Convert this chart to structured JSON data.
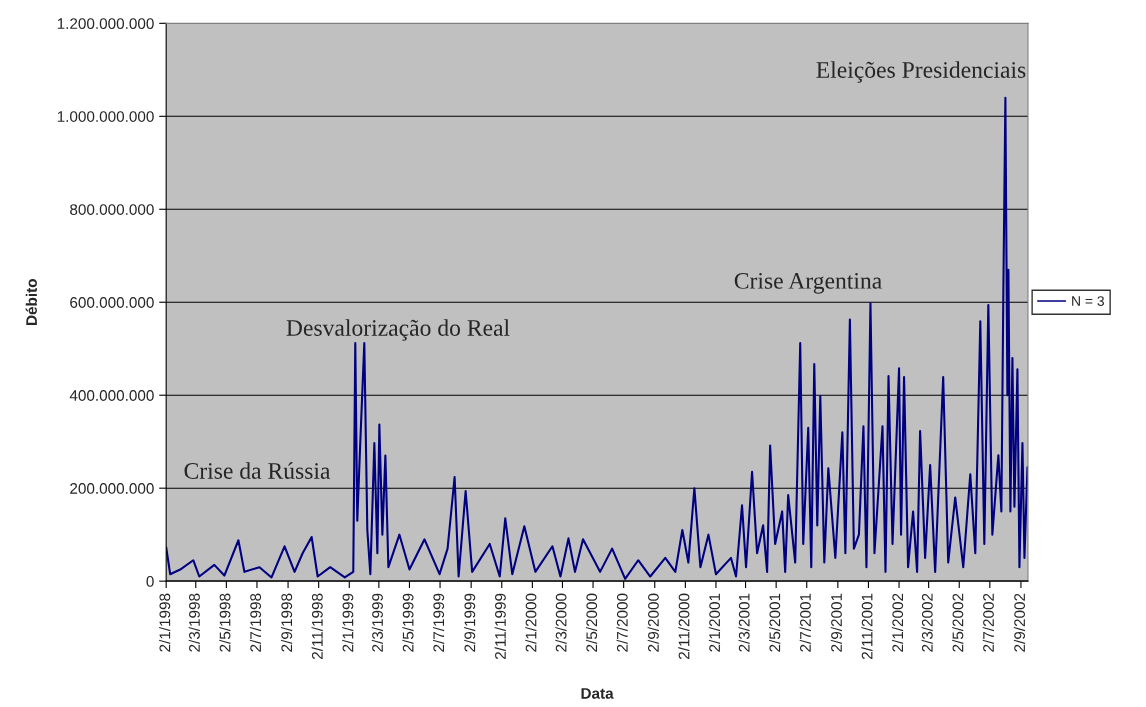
{
  "chart_data": {
    "type": "line",
    "xlabel": "Data",
    "ylabel": "Débito",
    "x": [
      "1998-01-02",
      "1998-01-10",
      "1998-01-30",
      "1998-02-25",
      "1998-03-09",
      "1998-04-08",
      "1998-04-28",
      "1998-05-26",
      "1998-06-07",
      "1998-07-07",
      "1998-07-31",
      "1998-08-26",
      "1998-09-15",
      "1998-10-01",
      "1998-10-19",
      "1998-10-31",
      "1998-11-25",
      "1998-12-24",
      "1999-01-10",
      "1999-01-14",
      "1999-01-18",
      "1999-01-24",
      "1999-02-01",
      "1999-02-07",
      "1999-02-13",
      "1999-02-21",
      "1999-02-27",
      "1999-03-03",
      "1999-03-09",
      "1999-03-15",
      "1999-03-21",
      "1999-04-12",
      "1999-05-02",
      "1999-06-01",
      "1999-07-01",
      "1999-07-17",
      "1999-07-31",
      "1999-08-08",
      "1999-08-22",
      "1999-09-04",
      "1999-10-09",
      "1999-10-29",
      "1999-11-09",
      "1999-11-23",
      "1999-12-17",
      "2000-01-08",
      "2000-02-11",
      "2000-02-27",
      "2000-03-14",
      "2000-03-27",
      "2000-04-12",
      "2000-05-16",
      "2000-06-09",
      "2000-07-05",
      "2000-07-31",
      "2000-08-24",
      "2000-09-23",
      "2000-10-13",
      "2000-10-27",
      "2000-11-08",
      "2000-11-20",
      "2000-12-02",
      "2000-12-18",
      "2001-01-02",
      "2001-02-01",
      "2001-02-11",
      "2001-02-23",
      "2001-03-03",
      "2001-03-15",
      "2001-03-25",
      "2001-04-06",
      "2001-04-14",
      "2001-04-20",
      "2001-04-30",
      "2001-05-14",
      "2001-05-20",
      "2001-05-26",
      "2001-06-09",
      "2001-06-19",
      "2001-06-25",
      "2001-07-05",
      "2001-07-11",
      "2001-07-17",
      "2001-07-23",
      "2001-07-29",
      "2001-08-06",
      "2001-08-14",
      "2001-08-28",
      "2001-09-11",
      "2001-09-17",
      "2001-09-26",
      "2001-10-04",
      "2001-10-14",
      "2001-10-23",
      "2001-10-29",
      "2001-11-06",
      "2001-11-14",
      "2001-11-30",
      "2001-12-06",
      "2001-12-12",
      "2001-12-20",
      "2002-01-02",
      "2002-01-06",
      "2002-01-12",
      "2002-01-20",
      "2002-01-30",
      "2002-02-07",
      "2002-02-13",
      "2002-02-23",
      "2002-03-05",
      "2002-03-15",
      "2002-03-31",
      "2002-04-10",
      "2002-04-24",
      "2002-05-10",
      "2002-05-24",
      "2002-06-03",
      "2002-06-13",
      "2002-06-21",
      "2002-06-29",
      "2002-07-07",
      "2002-07-19",
      "2002-07-25",
      "2002-07-29",
      "2002-08-02",
      "2002-08-06",
      "2002-08-08",
      "2002-08-12",
      "2002-08-16",
      "2002-08-20",
      "2002-08-26",
      "2002-08-30",
      "2002-09-05",
      "2002-09-09",
      "2002-09-15"
    ],
    "series": [
      {
        "name": "N = 3",
        "color": "#000080",
        "values": [
          73000000,
          15000000,
          25000000,
          45000000,
          10000000,
          35000000,
          12000000,
          88000000,
          20000000,
          30000000,
          8000000,
          75000000,
          20000000,
          60000000,
          95000000,
          10000000,
          30000000,
          8000000,
          20000000,
          512000000,
          130000000,
          300000000,
          512000000,
          110000000,
          15000000,
          297000000,
          60000000,
          337000000,
          100000000,
          270000000,
          30000000,
          100000000,
          25000000,
          90000000,
          15000000,
          70000000,
          224000000,
          10000000,
          194000000,
          20000000,
          80000000,
          10000000,
          135000000,
          15000000,
          118000000,
          20000000,
          75000000,
          10000000,
          92000000,
          20000000,
          90000000,
          20000000,
          70000000,
          5000000,
          45000000,
          10000000,
          50000000,
          20000000,
          110000000,
          40000000,
          200000000,
          30000000,
          100000000,
          15000000,
          50000000,
          10000000,
          163000000,
          30000000,
          235000000,
          60000000,
          120000000,
          20000000,
          292000000,
          80000000,
          150000000,
          20000000,
          185000000,
          40000000,
          512000000,
          80000000,
          330000000,
          30000000,
          467000000,
          120000000,
          398000000,
          40000000,
          243000000,
          50000000,
          320000000,
          60000000,
          563000000,
          70000000,
          100000000,
          333000000,
          30000000,
          598000000,
          60000000,
          333000000,
          20000000,
          441000000,
          80000000,
          458000000,
          100000000,
          439000000,
          30000000,
          150000000,
          20000000,
          323000000,
          50000000,
          250000000,
          20000000,
          439000000,
          40000000,
          180000000,
          30000000,
          230000000,
          60000000,
          559000000,
          80000000,
          594000000,
          100000000,
          271000000,
          150000000,
          630000000,
          1040000000,
          400000000,
          670000000,
          150000000,
          480000000,
          160000000,
          456000000,
          30000000,
          297000000,
          50000000,
          245000000
        ]
      }
    ],
    "xlim": [
      "1998-01-02",
      "2002-09-16"
    ],
    "xticks": [
      {
        "value": "1998-01-02",
        "label": "2/1/1998"
      },
      {
        "value": "1998-03-02",
        "label": "2/3/1998"
      },
      {
        "value": "1998-05-02",
        "label": "2/5/1998"
      },
      {
        "value": "1998-07-02",
        "label": "2/7/1998"
      },
      {
        "value": "1998-09-02",
        "label": "2/9/1998"
      },
      {
        "value": "1998-11-02",
        "label": "2/11/1998"
      },
      {
        "value": "1999-01-02",
        "label": "2/1/1999"
      },
      {
        "value": "1999-03-02",
        "label": "2/3/1999"
      },
      {
        "value": "1999-05-02",
        "label": "2/5/1999"
      },
      {
        "value": "1999-07-02",
        "label": "2/7/1999"
      },
      {
        "value": "1999-09-02",
        "label": "2/9/1999"
      },
      {
        "value": "1999-11-02",
        "label": "2/11/1999"
      },
      {
        "value": "2000-01-02",
        "label": "2/1/2000"
      },
      {
        "value": "2000-03-02",
        "label": "2/3/2000"
      },
      {
        "value": "2000-05-02",
        "label": "2/5/2000"
      },
      {
        "value": "2000-07-02",
        "label": "2/7/2000"
      },
      {
        "value": "2000-09-02",
        "label": "2/9/2000"
      },
      {
        "value": "2000-11-02",
        "label": "2/11/2000"
      },
      {
        "value": "2001-01-02",
        "label": "2/1/2001"
      },
      {
        "value": "2001-03-02",
        "label": "2/3/2001"
      },
      {
        "value": "2001-05-02",
        "label": "2/5/2001"
      },
      {
        "value": "2001-07-02",
        "label": "2/7/2001"
      },
      {
        "value": "2001-09-02",
        "label": "2/9/2001"
      },
      {
        "value": "2001-11-02",
        "label": "2/11/2001"
      },
      {
        "value": "2002-01-02",
        "label": "2/1/2002"
      },
      {
        "value": "2002-03-02",
        "label": "2/3/2002"
      },
      {
        "value": "2002-05-02",
        "label": "2/5/2002"
      },
      {
        "value": "2002-07-02",
        "label": "2/7/2002"
      },
      {
        "value": "2002-09-02",
        "label": "2/9/2002"
      }
    ],
    "ylim": [
      0,
      1200000000
    ],
    "yticks": [
      0,
      {
        "value": 200000000,
        "label": "200.000.000"
      },
      {
        "value": 400000000,
        "label": "400.000.000"
      },
      {
        "value": 600000000,
        "label": "600.000.000"
      },
      {
        "value": 800000000,
        "label": "800.000.000"
      },
      {
        "value": 1000000000,
        "label": "1.000.000.000"
      },
      {
        "value": 1200000000,
        "label": "1.200.000.000"
      }
    ],
    "grid": "y",
    "legend": "right",
    "annotations": [
      "Crise da Rússia",
      "Desvalorização do Real",
      "Crise Argentina",
      "Eleições Presidenciais"
    ]
  }
}
